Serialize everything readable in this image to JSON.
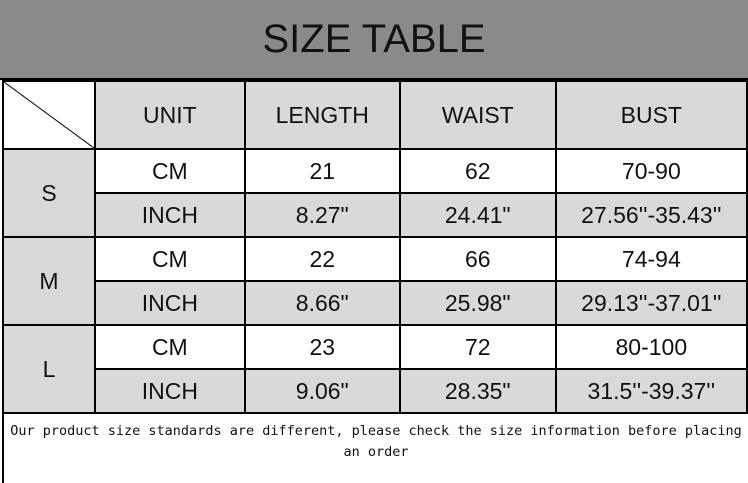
{
  "title": "SIZE TABLE",
  "headers": [
    "UNIT",
    "LENGTH",
    "WAIST",
    "BUST"
  ],
  "sizes": [
    {
      "size": "S",
      "rows": [
        [
          "CM",
          "21",
          "62",
          "70-90"
        ],
        [
          "INCH",
          "8.27\"",
          "24.41\"",
          "27.56''-35.43''"
        ]
      ]
    },
    {
      "size": "M",
      "rows": [
        [
          "CM",
          "22",
          "66",
          "74-94"
        ],
        [
          "INCH",
          "8.66\"",
          "25.98\"",
          "29.13''-37.01''"
        ]
      ]
    },
    {
      "size": "L",
      "rows": [
        [
          "CM",
          "23",
          "72",
          "80-100"
        ],
        [
          "INCH",
          "9.06\"",
          "28.35\"",
          "31.5''-39.37''"
        ]
      ]
    }
  ],
  "footer": "Our product size standards are different, please check the size information before placing an order"
}
